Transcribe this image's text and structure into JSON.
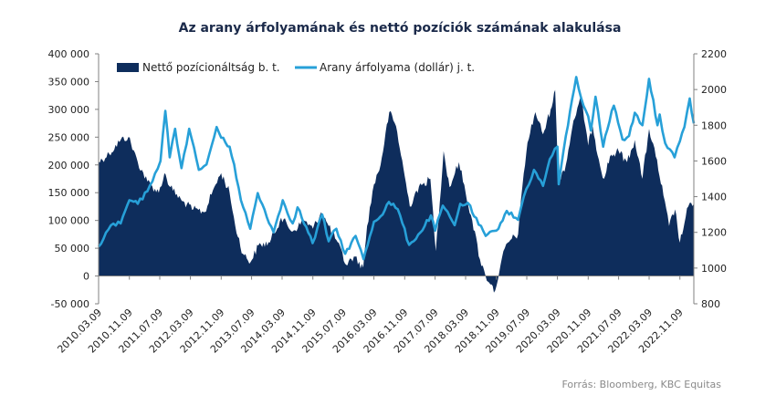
{
  "chart_data": {
    "type": "area",
    "title": "Az arany árfolyamának és nettó pozíciók számának alakulása",
    "source": "Forrás: Bloomberg, KBC Equitas",
    "x_tick_labels": [
      "2010.03.09",
      "2010.11.09",
      "2011.07.09",
      "2012.03.09",
      "2012.11.09",
      "2013.07.09",
      "2014.03.09",
      "2014.11.09",
      "2015.07.09",
      "2016.03.09",
      "2016.11.09",
      "2017.07.09",
      "2018.03.09",
      "2018.11.09",
      "2019.07.09",
      "2020.03.09",
      "2020.11.09",
      "2021.07.09",
      "2022.03.09",
      "2022.11.09"
    ],
    "x_range": [
      "2010-03-09",
      "2023-02-28"
    ],
    "y_left": {
      "ticks": [
        -50000,
        0,
        50000,
        100000,
        150000,
        200000,
        250000,
        300000,
        350000,
        400000
      ],
      "tick_labels": [
        "-50 000",
        "0",
        "50 000",
        "100 000",
        "150 000",
        "200 000",
        "250 000",
        "300 000",
        "350 000",
        "400 000"
      ],
      "ylim": [
        -50000,
        400000
      ]
    },
    "y_right": {
      "ticks": [
        800,
        1000,
        1200,
        1400,
        1600,
        1800,
        2000,
        2200
      ],
      "tick_labels": [
        "800",
        "1000",
        "1200",
        "1400",
        "1600",
        "1800",
        "2000",
        "2200"
      ],
      "ylim": [
        800,
        2200
      ]
    },
    "series": [
      {
        "name": "Nettő pozícionáltság b. t.",
        "axis": "left",
        "type": "area",
        "color": "#0e2d5c",
        "points": [
          [
            "2010-03-09",
            205000
          ],
          [
            "2010-06-01",
            220000
          ],
          [
            "2010-09-01",
            245000
          ],
          [
            "2010-11-01",
            250000
          ],
          [
            "2011-01-15",
            205000
          ],
          [
            "2011-04-01",
            170000
          ],
          [
            "2011-07-01",
            150000
          ],
          [
            "2011-08-15",
            185000
          ],
          [
            "2011-10-01",
            160000
          ],
          [
            "2012-01-01",
            135000
          ],
          [
            "2012-04-01",
            120000
          ],
          [
            "2012-07-01",
            115000
          ],
          [
            "2012-09-15",
            160000
          ],
          [
            "2012-11-09",
            185000
          ],
          [
            "2013-01-15",
            150000
          ],
          [
            "2013-03-01",
            90000
          ],
          [
            "2013-05-01",
            40000
          ],
          [
            "2013-07-01",
            25000
          ],
          [
            "2013-09-01",
            55000
          ],
          [
            "2013-12-01",
            60000
          ],
          [
            "2014-03-01",
            105000
          ],
          [
            "2014-06-01",
            80000
          ],
          [
            "2014-09-01",
            100000
          ],
          [
            "2014-11-09",
            85000
          ],
          [
            "2015-01-15",
            115000
          ],
          [
            "2015-03-15",
            90000
          ],
          [
            "2015-05-15",
            65000
          ],
          [
            "2015-08-01",
            20000
          ],
          [
            "2015-10-01",
            35000
          ],
          [
            "2015-12-15",
            15000
          ],
          [
            "2016-01-15",
            90000
          ],
          [
            "2016-03-09",
            165000
          ],
          [
            "2016-05-01",
            200000
          ],
          [
            "2016-07-09",
            295000
          ],
          [
            "2016-09-01",
            270000
          ],
          [
            "2016-11-09",
            180000
          ],
          [
            "2016-12-20",
            125000
          ],
          [
            "2017-02-01",
            150000
          ],
          [
            "2017-04-01",
            165000
          ],
          [
            "2017-06-01",
            175000
          ],
          [
            "2017-07-15",
            45000
          ],
          [
            "2017-09-15",
            225000
          ],
          [
            "2017-11-01",
            160000
          ],
          [
            "2018-01-15",
            205000
          ],
          [
            "2018-03-09",
            150000
          ],
          [
            "2018-05-01",
            100000
          ],
          [
            "2018-07-01",
            30000
          ],
          [
            "2018-08-15",
            0
          ],
          [
            "2018-10-01",
            -15000
          ],
          [
            "2018-10-20",
            -30000
          ],
          [
            "2018-12-01",
            5000
          ],
          [
            "2019-01-15",
            50000
          ],
          [
            "2019-03-01",
            65000
          ],
          [
            "2019-05-01",
            75000
          ],
          [
            "2019-06-15",
            185000
          ],
          [
            "2019-07-15",
            240000
          ],
          [
            "2019-09-15",
            295000
          ],
          [
            "2019-11-15",
            255000
          ],
          [
            "2020-01-15",
            300000
          ],
          [
            "2020-02-20",
            335000
          ],
          [
            "2020-03-15",
            170000
          ],
          [
            "2020-05-15",
            200000
          ],
          [
            "2020-07-15",
            280000
          ],
          [
            "2020-09-15",
            320000
          ],
          [
            "2020-11-09",
            235000
          ],
          [
            "2020-12-15",
            270000
          ],
          [
            "2021-02-01",
            210000
          ],
          [
            "2021-03-15",
            175000
          ],
          [
            "2021-05-01",
            215000
          ],
          [
            "2021-07-09",
            225000
          ],
          [
            "2021-09-15",
            205000
          ],
          [
            "2021-11-15",
            245000
          ],
          [
            "2022-01-15",
            175000
          ],
          [
            "2022-03-09",
            265000
          ],
          [
            "2022-05-01",
            215000
          ],
          [
            "2022-07-01",
            145000
          ],
          [
            "2022-08-15",
            90000
          ],
          [
            "2022-10-01",
            120000
          ],
          [
            "2022-11-09",
            60000
          ],
          [
            "2022-12-15",
            95000
          ],
          [
            "2023-01-15",
            125000
          ],
          [
            "2023-02-28",
            130000
          ]
        ]
      },
      {
        "name": "Arany árfolyama (dollár) j. t.",
        "axis": "right",
        "type": "line",
        "color": "#27a0d8",
        "points": [
          [
            "2010-03-09",
            1120
          ],
          [
            "2010-06-15",
            1240
          ],
          [
            "2010-09-01",
            1250
          ],
          [
            "2010-11-09",
            1380
          ],
          [
            "2011-01-15",
            1360
          ],
          [
            "2011-04-01",
            1430
          ],
          [
            "2011-06-01",
            1530
          ],
          [
            "2011-07-15",
            1600
          ],
          [
            "2011-08-22",
            1880
          ],
          [
            "2011-09-26",
            1620
          ],
          [
            "2011-11-08",
            1780
          ],
          [
            "2011-12-29",
            1560
          ],
          [
            "2012-02-28",
            1780
          ],
          [
            "2012-05-15",
            1550
          ],
          [
            "2012-07-15",
            1580
          ],
          [
            "2012-10-04",
            1790
          ],
          [
            "2012-11-09",
            1730
          ],
          [
            "2013-01-15",
            1680
          ],
          [
            "2013-02-20",
            1580
          ],
          [
            "2013-04-15",
            1380
          ],
          [
            "2013-06-28",
            1220
          ],
          [
            "2013-08-27",
            1420
          ],
          [
            "2013-12-31",
            1200
          ],
          [
            "2014-03-14",
            1380
          ],
          [
            "2014-06-01",
            1250
          ],
          [
            "2014-07-10",
            1340
          ],
          [
            "2014-11-07",
            1140
          ],
          [
            "2015-01-22",
            1300
          ],
          [
            "2015-03-15",
            1150
          ],
          [
            "2015-05-15",
            1220
          ],
          [
            "2015-07-24",
            1080
          ],
          [
            "2015-10-15",
            1180
          ],
          [
            "2015-12-17",
            1050
          ],
          [
            "2016-03-09",
            1260
          ],
          [
            "2016-05-01",
            1290
          ],
          [
            "2016-07-06",
            1370
          ],
          [
            "2016-09-15",
            1330
          ],
          [
            "2016-12-15",
            1130
          ],
          [
            "2017-03-15",
            1200
          ],
          [
            "2017-06-06",
            1295
          ],
          [
            "2017-07-10",
            1210
          ],
          [
            "2017-09-08",
            1350
          ],
          [
            "2017-12-12",
            1240
          ],
          [
            "2018-01-25",
            1360
          ],
          [
            "2018-04-15",
            1350
          ],
          [
            "2018-05-15",
            1290
          ],
          [
            "2018-08-16",
            1180
          ],
          [
            "2018-11-09",
            1210
          ],
          [
            "2019-01-31",
            1320
          ],
          [
            "2019-05-01",
            1270
          ],
          [
            "2019-06-15",
            1400
          ],
          [
            "2019-09-04",
            1550
          ],
          [
            "2019-11-15",
            1460
          ],
          [
            "2020-01-08",
            1610
          ],
          [
            "2020-03-09",
            1680
          ],
          [
            "2020-03-19",
            1470
          ],
          [
            "2020-05-15",
            1740
          ],
          [
            "2020-08-06",
            2070
          ],
          [
            "2020-09-15",
            1950
          ],
          [
            "2020-11-09",
            1850
          ],
          [
            "2020-11-30",
            1770
          ],
          [
            "2021-01-06",
            1960
          ],
          [
            "2021-03-08",
            1680
          ],
          [
            "2021-05-15",
            1880
          ],
          [
            "2021-06-01",
            1910
          ],
          [
            "2021-08-09",
            1720
          ],
          [
            "2021-09-30",
            1740
          ],
          [
            "2021-11-15",
            1870
          ],
          [
            "2022-01-15",
            1800
          ],
          [
            "2022-03-08",
            2060
          ],
          [
            "2022-05-15",
            1800
          ],
          [
            "2022-06-01",
            1860
          ],
          [
            "2022-07-15",
            1700
          ],
          [
            "2022-09-28",
            1620
          ],
          [
            "2022-11-09",
            1710
          ],
          [
            "2022-12-15",
            1790
          ],
          [
            "2023-01-26",
            1950
          ],
          [
            "2023-02-28",
            1810
          ]
        ]
      }
    ],
    "legend_position": "top-left",
    "grid": false
  }
}
